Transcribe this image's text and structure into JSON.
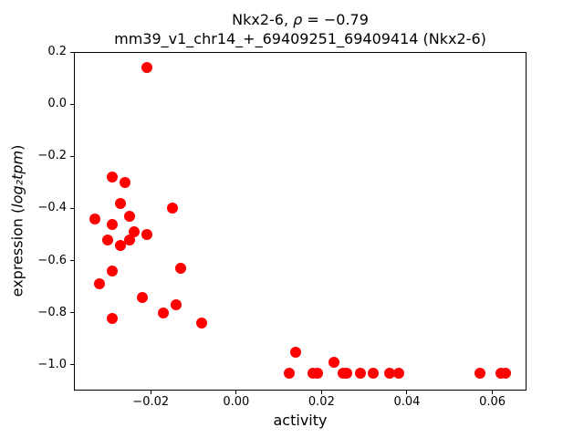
{
  "title": {
    "prefix": "Nkx2-6, ",
    "rho": "ρ",
    "suffix": " = −0.79"
  },
  "ylabel_parts": {
    "prefix": "expression (",
    "math": "log₂tpm",
    "suffix": ")"
  },
  "chart_data": {
    "type": "scatter",
    "title": "Nkx2-6, ρ = −0.79",
    "subtitle": "mm39_v1_chr14_+_69409251_69409414 (Nkx2-6)",
    "xlabel": "activity",
    "ylabel": "expression (log₂tpm)",
    "marker_color": "#ff0000",
    "marker_size_px": 12,
    "grid": false,
    "legend": null,
    "xlim": [
      -0.038,
      0.068
    ],
    "ylim": [
      -1.098,
      0.2
    ],
    "x_ticks": [
      -0.02,
      0.0,
      0.02,
      0.04,
      0.06
    ],
    "x_tick_labels": [
      "−0.02",
      "0.00",
      "0.02",
      "0.04",
      "0.06"
    ],
    "y_ticks": [
      0.2,
      0.0,
      -0.2,
      -0.4,
      -0.6,
      -0.8,
      -1.0
    ],
    "y_tick_labels": [
      "0.2",
      "0.0",
      "−0.2",
      "−0.4",
      "−0.6",
      "−0.8",
      "−1.0"
    ],
    "points": [
      [
        -0.021,
        0.14
      ],
      [
        -0.029,
        -0.28
      ],
      [
        -0.026,
        -0.3
      ],
      [
        -0.027,
        -0.38
      ],
      [
        -0.015,
        -0.4
      ],
      [
        -0.025,
        -0.43
      ],
      [
        -0.033,
        -0.44
      ],
      [
        -0.029,
        -0.46
      ],
      [
        -0.024,
        -0.49
      ],
      [
        -0.021,
        -0.5
      ],
      [
        -0.03,
        -0.52
      ],
      [
        -0.025,
        -0.52
      ],
      [
        -0.027,
        -0.54
      ],
      [
        -0.013,
        -0.63
      ],
      [
        -0.029,
        -0.64
      ],
      [
        -0.032,
        -0.69
      ],
      [
        -0.022,
        -0.74
      ],
      [
        -0.014,
        -0.77
      ],
      [
        -0.017,
        -0.8
      ],
      [
        -0.029,
        -0.82
      ],
      [
        -0.008,
        -0.84
      ],
      [
        0.014,
        -0.95
      ],
      [
        0.0125,
        -1.03
      ],
      [
        0.018,
        -1.03
      ],
      [
        0.019,
        -1.03
      ],
      [
        0.023,
        -0.99
      ],
      [
        0.025,
        -1.03
      ],
      [
        0.026,
        -1.03
      ],
      [
        0.029,
        -1.03
      ],
      [
        0.032,
        -1.03
      ],
      [
        0.036,
        -1.03
      ],
      [
        0.038,
        -1.03
      ],
      [
        0.057,
        -1.03
      ],
      [
        0.062,
        -1.03
      ],
      [
        0.063,
        -1.03
      ]
    ]
  }
}
